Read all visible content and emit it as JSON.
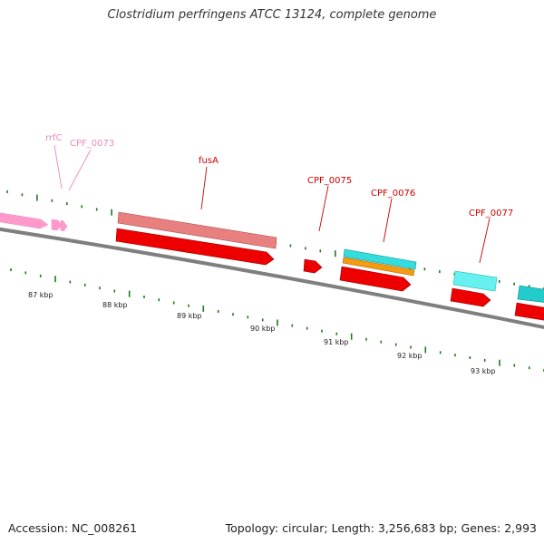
{
  "title": "Clostridium perfringens ATCC 13124, complete genome",
  "footer": {
    "accession": "Accession: NC_008261",
    "summary": "Topology: circular; Length: 3,256,683 bp; Genes: 2,993"
  },
  "colors": {
    "backbone": "#7f7f7f",
    "tick": "#1f7a1f",
    "rna_feature": "#ff99cc",
    "rna_label": "#e98bbd",
    "cds_label": "#cc0000",
    "cds": "#ee0000",
    "cds_light": "#e98080",
    "cyan": "#33dddd",
    "orange": "#f39c12",
    "teal": "#22bbbb"
  },
  "gene_labels": [
    {
      "text": "rrfC",
      "kind": "rna"
    },
    {
      "text": "CPF_0073",
      "kind": "rna"
    },
    {
      "text": "fusA",
      "kind": "cds"
    },
    {
      "text": "CPF_0075",
      "kind": "cds"
    },
    {
      "text": "CPF_0076",
      "kind": "cds"
    },
    {
      "text": "CPF_0077",
      "kind": "cds"
    }
  ],
  "kbp_labels": [
    "87 kbp",
    "88 kbp",
    "89 kbp",
    "90 kbp",
    "91 kbp",
    "92 kbp",
    "93 kbp"
  ]
}
